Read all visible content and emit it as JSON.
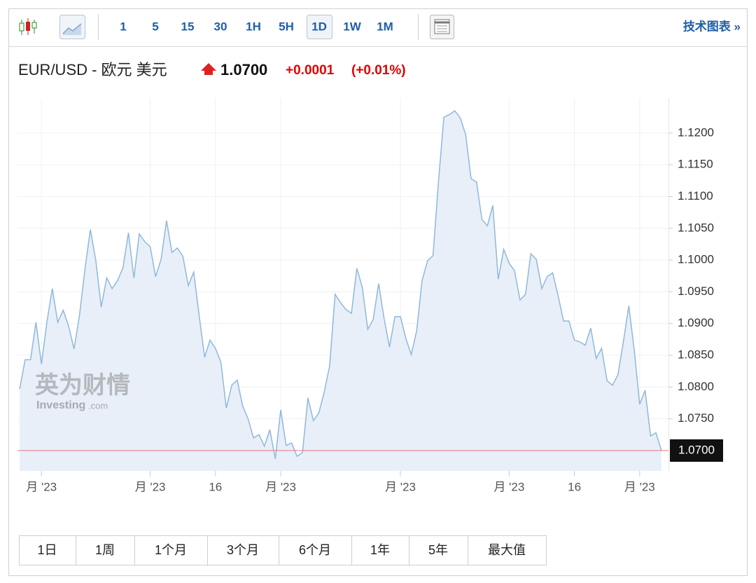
{
  "toolbar": {
    "intervals": [
      "1",
      "5",
      "15",
      "30",
      "1H",
      "5H",
      "1D",
      "1W",
      "1M"
    ],
    "selected_interval": "1D",
    "link": "技术图表 »"
  },
  "header": {
    "symbol": "EUR/USD - 欧元 美元",
    "price": "1.0700",
    "change": "+0.0001",
    "change_percent": "(+0.01%)"
  },
  "watermark": {
    "cn": "英为财情",
    "brand": "Investing",
    "domain": ".com"
  },
  "ranges": [
    "1日",
    "1周",
    "1个月",
    "3个月",
    "6个月",
    "1年",
    "5年",
    "最大值"
  ],
  "chart_data": {
    "type": "area",
    "values": [
      1.0797,
      1.0843,
      1.0843,
      1.0902,
      1.0836,
      1.0902,
      1.0955,
      1.0902,
      1.0921,
      1.0896,
      1.086,
      1.0913,
      1.0985,
      1.1048,
      1.0999,
      1.0926,
      1.0972,
      1.0955,
      1.0968,
      1.0988,
      1.1043,
      1.0972,
      1.1041,
      1.1029,
      1.1021,
      1.0974,
      1.1001,
      1.1062,
      1.1012,
      1.1019,
      1.1006,
      1.096,
      1.0981,
      1.0913,
      1.0847,
      1.0874,
      1.0861,
      1.0839,
      1.0767,
      1.0803,
      1.0811,
      1.077,
      1.075,
      1.072,
      1.0725,
      1.0707,
      1.0733,
      1.0687,
      1.0764,
      1.0708,
      1.0712,
      1.0691,
      1.0697,
      1.0783,
      1.0747,
      1.0759,
      1.0792,
      1.0834,
      1.0946,
      1.0933,
      1.0922,
      1.0916,
      1.0987,
      1.0957,
      1.0891,
      1.0906,
      1.0963,
      1.0908,
      1.0863,
      1.0911,
      1.0911,
      1.0877,
      1.0851,
      1.0889,
      1.0968,
      1.0999,
      1.1007,
      1.1123,
      1.1225,
      1.1229,
      1.1235,
      1.1224,
      1.1198,
      1.1128,
      1.1123,
      1.1064,
      1.1054,
      1.1086,
      1.097,
      1.1017,
      1.0995,
      1.0983,
      1.0937,
      1.0946,
      1.101,
      1.1001,
      1.0955,
      1.0974,
      1.098,
      1.0944,
      1.0904,
      1.0904,
      1.0874,
      1.0871,
      1.0866,
      1.0893,
      1.0845,
      1.0861,
      1.081,
      1.0803,
      1.0819,
      1.0871,
      1.0928,
      1.0858,
      1.0773,
      1.0795,
      1.0723,
      1.0728,
      1.07
    ],
    "color": "#8fb8dc",
    "fill": "#e8eff8",
    "last_price": {
      "value": 1.07,
      "label": "1.0700"
    },
    "last_price_color": "#e8737d",
    "xlim": [
      -0.4,
      119.3
    ],
    "xticks": [
      {
        "value": 4,
        "label": "月 '23"
      },
      {
        "value": 24,
        "label": "月 '23"
      },
      {
        "value": 36,
        "label": "16"
      },
      {
        "value": 48,
        "label": "月 '23"
      },
      {
        "value": 70,
        "label": "月 '23"
      },
      {
        "value": 90,
        "label": "月 '23"
      },
      {
        "value": 102,
        "label": "16"
      },
      {
        "value": 114,
        "label": "月 '23"
      }
    ],
    "ylim": [
      1.0668,
      1.1255
    ],
    "yticks": [
      {
        "value": 1.075,
        "label": "1.0750"
      },
      {
        "value": 1.08,
        "label": "1.0800"
      },
      {
        "value": 1.085,
        "label": "1.0850"
      },
      {
        "value": 1.09,
        "label": "1.0900"
      },
      {
        "value": 1.095,
        "label": "1.0950"
      },
      {
        "value": 1.1,
        "label": "1.1000"
      },
      {
        "value": 1.105,
        "label": "1.1050"
      },
      {
        "value": 1.11,
        "label": "1.1100"
      },
      {
        "value": 1.115,
        "label": "1.1150"
      },
      {
        "value": 1.12,
        "label": "1.1200"
      }
    ],
    "grid": true
  }
}
